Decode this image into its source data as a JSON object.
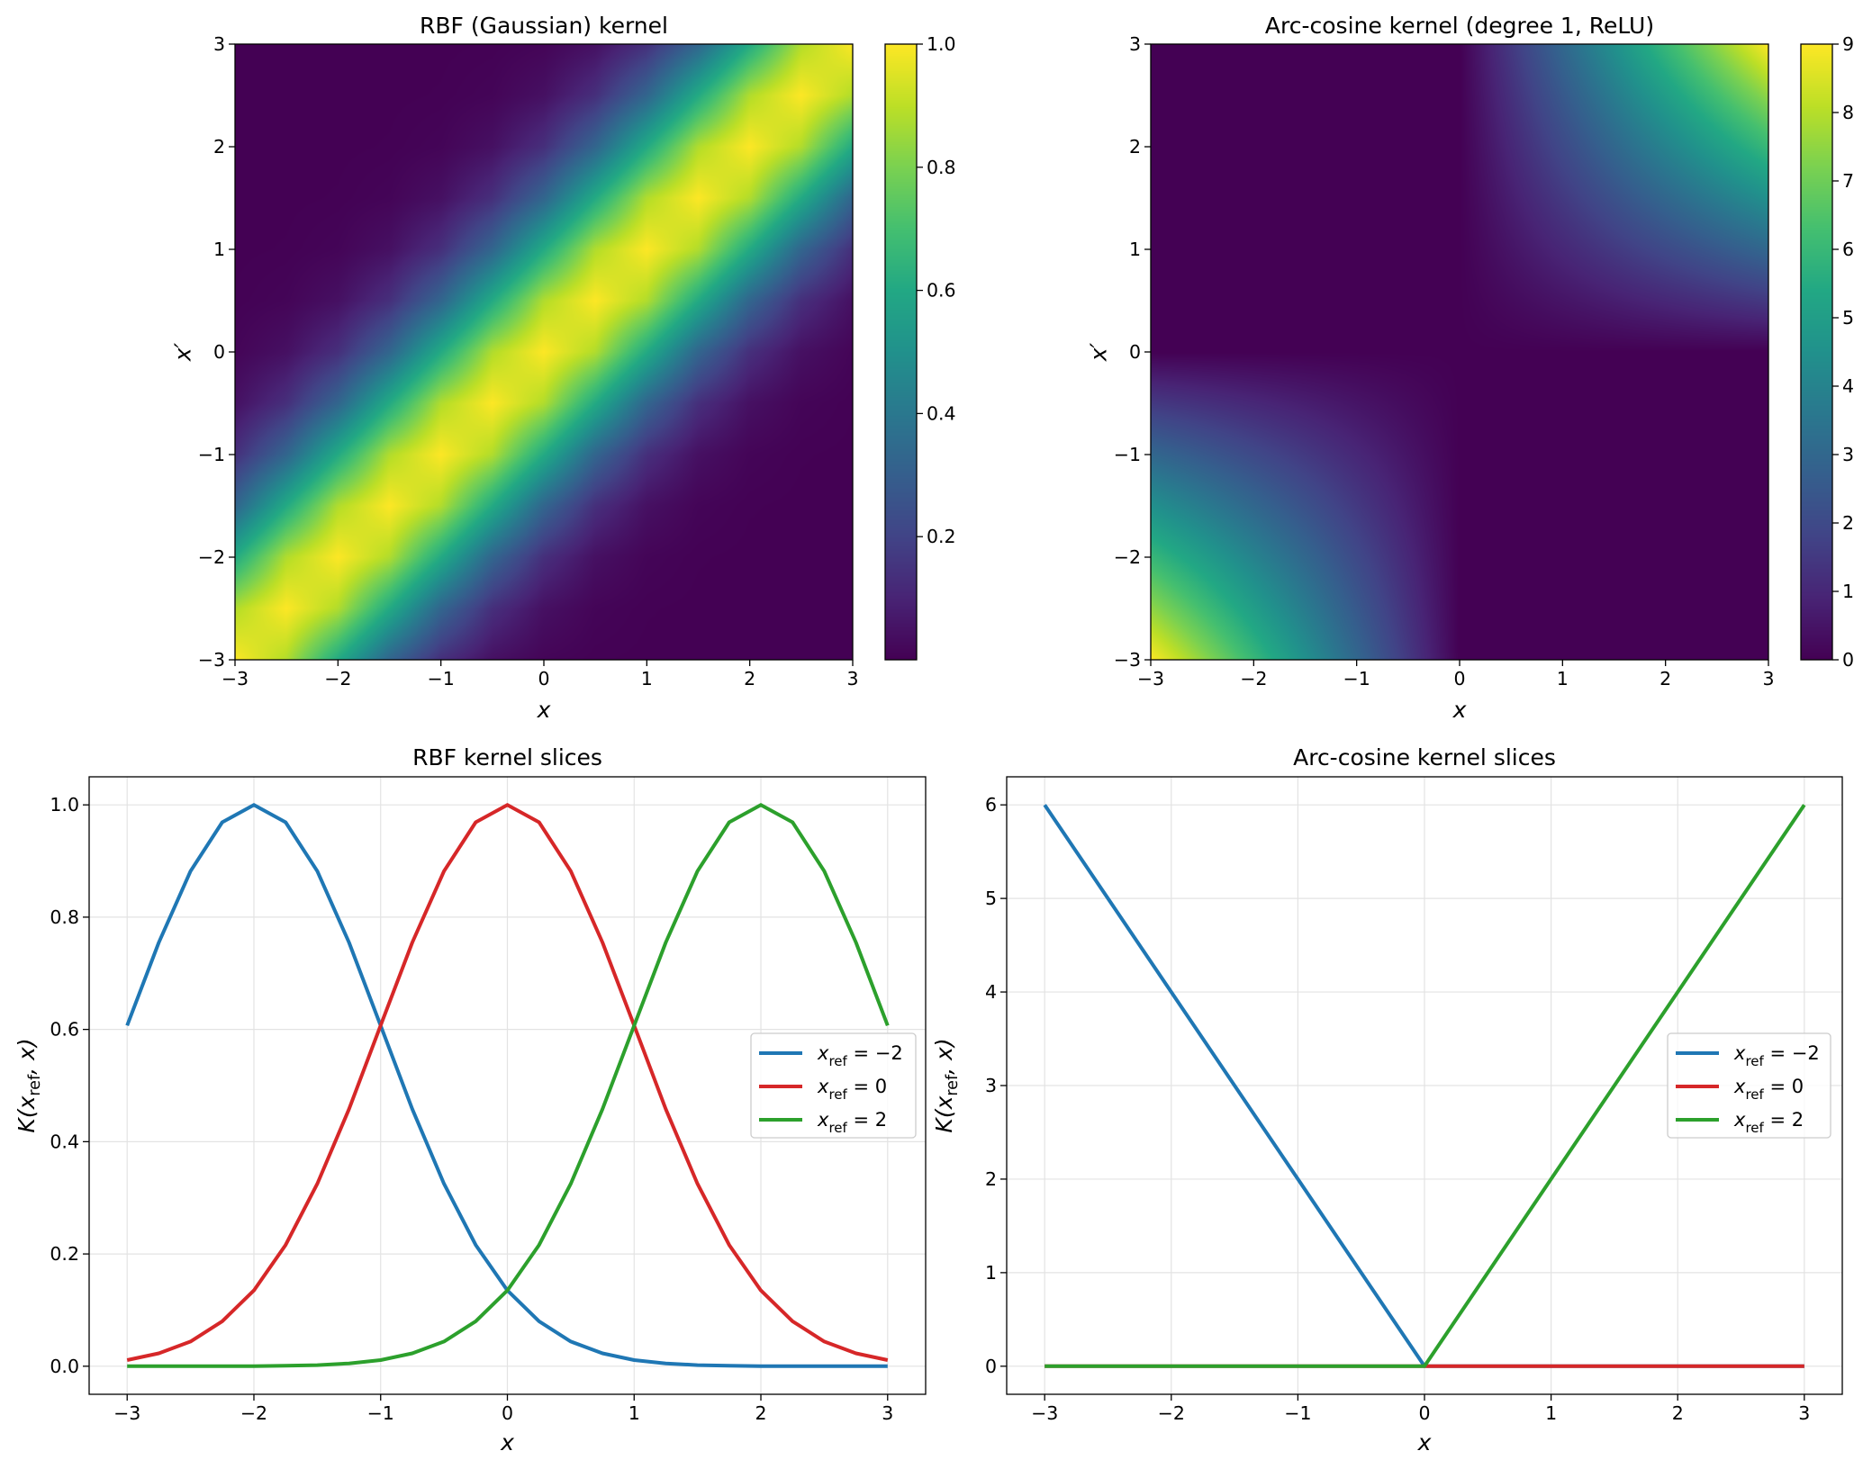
{
  "chart_data": [
    {
      "type": "heatmap",
      "title": "RBF (Gaussian) kernel",
      "xlabel": "x",
      "ylabel": "x′",
      "colormap": "viridis",
      "x": [
        -3,
        -2.5,
        -2,
        -1.5,
        -1,
        -0.5,
        0,
        0.5,
        1,
        1.5,
        2,
        2.5,
        3
      ],
      "y": [
        -3,
        -2.5,
        -2,
        -1.5,
        -1,
        -0.5,
        0,
        0.5,
        1,
        1.5,
        2,
        2.5,
        3
      ],
      "z": [
        [
          1,
          0.882,
          0.607,
          0.325,
          0.135,
          0.044,
          0.011,
          0.002,
          0,
          0,
          0,
          0,
          0
        ],
        [
          0.882,
          1,
          0.882,
          0.607,
          0.325,
          0.135,
          0.044,
          0.011,
          0.002,
          0,
          0,
          0,
          0
        ],
        [
          0.607,
          0.882,
          1,
          0.882,
          0.607,
          0.325,
          0.135,
          0.044,
          0.011,
          0.002,
          0,
          0,
          0
        ],
        [
          0.325,
          0.607,
          0.882,
          1,
          0.882,
          0.607,
          0.325,
          0.135,
          0.044,
          0.011,
          0.002,
          0,
          0
        ],
        [
          0.135,
          0.325,
          0.607,
          0.882,
          1,
          0.882,
          0.607,
          0.325,
          0.135,
          0.044,
          0.011,
          0.002,
          0
        ],
        [
          0.044,
          0.135,
          0.325,
          0.607,
          0.882,
          1,
          0.882,
          0.607,
          0.325,
          0.135,
          0.044,
          0.011,
          0.002
        ],
        [
          0.011,
          0.044,
          0.135,
          0.325,
          0.607,
          0.882,
          1,
          0.882,
          0.607,
          0.325,
          0.135,
          0.044,
          0.011
        ],
        [
          0.002,
          0.011,
          0.044,
          0.135,
          0.325,
          0.607,
          0.882,
          1,
          0.882,
          0.607,
          0.325,
          0.135,
          0.044
        ],
        [
          0,
          0.002,
          0.011,
          0.044,
          0.135,
          0.325,
          0.607,
          0.882,
          1,
          0.882,
          0.607,
          0.325,
          0.135
        ],
        [
          0,
          0,
          0.002,
          0.011,
          0.044,
          0.135,
          0.325,
          0.607,
          0.882,
          1,
          0.882,
          0.607,
          0.325
        ],
        [
          0,
          0,
          0,
          0.002,
          0.011,
          0.044,
          0.135,
          0.325,
          0.607,
          0.882,
          1,
          0.882,
          0.607
        ],
        [
          0,
          0,
          0,
          0,
          0.002,
          0.011,
          0.044,
          0.135,
          0.325,
          0.607,
          0.882,
          1,
          0.882
        ],
        [
          0,
          0,
          0,
          0,
          0,
          0.002,
          0.011,
          0.044,
          0.135,
          0.325,
          0.607,
          0.882,
          1
        ]
      ],
      "xlim": [
        -3,
        3
      ],
      "ylim": [
        -3,
        3
      ],
      "xticks": [
        -3,
        -2,
        -1,
        0,
        1,
        2,
        3
      ],
      "xticklabels": [
        "−3",
        "−2",
        "−1",
        "0",
        "1",
        "2",
        "3"
      ],
      "yticks": [
        -3,
        -2,
        -1,
        0,
        1,
        2,
        3
      ],
      "yticklabels": [
        "−3",
        "−2",
        "−1",
        "0",
        "1",
        "2",
        "3"
      ],
      "colorbar": {
        "range": [
          0,
          1
        ],
        "ticks": [
          0.2,
          0.4,
          0.6,
          0.8,
          1.0
        ],
        "ticklabels": [
          "0.2",
          "0.4",
          "0.6",
          "0.8",
          "1.0"
        ]
      }
    },
    {
      "type": "heatmap",
      "title": "Arc-cosine kernel (degree 1, ReLU)",
      "xlabel": "x",
      "ylabel": "x′",
      "colormap": "viridis",
      "x": [
        -3,
        -2.5,
        -2,
        -1.5,
        -1,
        -0.5,
        0,
        0.5,
        1,
        1.5,
        2,
        2.5,
        3
      ],
      "y": [
        -3,
        -2.5,
        -2,
        -1.5,
        -1,
        -0.5,
        0,
        0.5,
        1,
        1.5,
        2,
        2.5,
        3
      ],
      "z": [
        [
          9,
          7.5,
          6,
          4.5,
          3,
          1.5,
          0,
          0,
          0,
          0,
          0,
          0,
          0
        ],
        [
          7.5,
          6.25,
          5,
          3.75,
          2.5,
          1.25,
          0,
          0,
          0,
          0,
          0,
          0,
          0
        ],
        [
          6,
          5,
          4,
          3,
          2,
          1,
          0,
          0,
          0,
          0,
          0,
          0,
          0
        ],
        [
          4.5,
          3.75,
          3,
          2.25,
          1.5,
          0.75,
          0,
          0,
          0,
          0,
          0,
          0,
          0
        ],
        [
          3,
          2.5,
          2,
          1.5,
          1,
          0.5,
          0,
          0,
          0,
          0,
          0,
          0,
          0
        ],
        [
          1.5,
          1.25,
          1,
          0.75,
          0.5,
          0.25,
          0,
          0,
          0,
          0,
          0,
          0,
          0
        ],
        [
          0,
          0,
          0,
          0,
          0,
          0,
          0,
          0,
          0,
          0,
          0,
          0,
          0
        ],
        [
          0,
          0,
          0,
          0,
          0,
          0,
          0,
          0.25,
          0.5,
          0.75,
          1,
          1.25,
          1.5
        ],
        [
          0,
          0,
          0,
          0,
          0,
          0,
          0,
          0.5,
          1,
          1.5,
          2,
          2.5,
          3
        ],
        [
          0,
          0,
          0,
          0,
          0,
          0,
          0,
          0.75,
          1.5,
          2.25,
          3,
          3.75,
          4.5
        ],
        [
          0,
          0,
          0,
          0,
          0,
          0,
          0,
          1,
          2,
          3,
          4,
          5,
          6
        ],
        [
          0,
          0,
          0,
          0,
          0,
          0,
          0,
          1.25,
          2.5,
          3.75,
          5,
          6.25,
          7.5
        ],
        [
          0,
          0,
          0,
          0,
          0,
          0,
          0,
          1.5,
          3,
          4.5,
          6,
          7.5,
          9
        ]
      ],
      "xlim": [
        -3,
        3
      ],
      "ylim": [
        -3,
        3
      ],
      "xticks": [
        -3,
        -2,
        -1,
        0,
        1,
        2,
        3
      ],
      "xticklabels": [
        "−3",
        "−2",
        "−1",
        "0",
        "1",
        "2",
        "3"
      ],
      "yticks": [
        -3,
        -2,
        -1,
        0,
        1,
        2,
        3
      ],
      "yticklabels": [
        "−3",
        "−2",
        "−1",
        "0",
        "1",
        "2",
        "3"
      ],
      "colorbar": {
        "range": [
          0,
          9
        ],
        "ticks": [
          0,
          1,
          2,
          3,
          4,
          5,
          6,
          7,
          8,
          9
        ],
        "ticklabels": [
          "0",
          "1",
          "2",
          "3",
          "4",
          "5",
          "6",
          "7",
          "8",
          "9"
        ]
      }
    },
    {
      "type": "line",
      "title": "RBF kernel slices",
      "xlabel": "x",
      "ylabel": {
        "pre": "K(",
        "sym": "x",
        "sub": "ref",
        "post": ", x)"
      },
      "x": [
        -3,
        -2.75,
        -2.5,
        -2.25,
        -2,
        -1.75,
        -1.5,
        -1.25,
        -1,
        -0.75,
        -0.5,
        -0.25,
        0,
        0.25,
        0.5,
        0.75,
        1,
        1.25,
        1.5,
        1.75,
        2,
        2.25,
        2.5,
        2.75,
        3
      ],
      "series": [
        {
          "name": {
            "sym": "x",
            "sub": "ref",
            "rest": " = −2"
          },
          "color": "#1f77b4",
          "values": [
            0.607,
            0.755,
            0.882,
            0.969,
            1,
            0.969,
            0.882,
            0.755,
            0.607,
            0.458,
            0.325,
            0.216,
            0.135,
            0.08,
            0.044,
            0.023,
            0.011,
            0.005,
            0.002,
            0.001,
            0,
            0,
            0,
            0,
            0
          ]
        },
        {
          "name": {
            "sym": "x",
            "sub": "ref",
            "rest": " = 0"
          },
          "color": "#d62728",
          "values": [
            0.011,
            0.023,
            0.044,
            0.08,
            0.135,
            0.216,
            0.325,
            0.458,
            0.607,
            0.755,
            0.882,
            0.969,
            1,
            0.969,
            0.882,
            0.755,
            0.607,
            0.458,
            0.325,
            0.216,
            0.135,
            0.08,
            0.044,
            0.023,
            0.011
          ]
        },
        {
          "name": {
            "sym": "x",
            "sub": "ref",
            "rest": " = 2"
          },
          "color": "#2ca02c",
          "values": [
            0,
            0,
            0,
            0,
            0,
            0.001,
            0.002,
            0.005,
            0.011,
            0.023,
            0.044,
            0.08,
            0.135,
            0.216,
            0.325,
            0.458,
            0.607,
            0.755,
            0.882,
            0.969,
            1,
            0.969,
            0.882,
            0.755,
            0.607
          ]
        }
      ],
      "xlim": [
        -3.3,
        3.3
      ],
      "ylim": [
        -0.05,
        1.05
      ],
      "xticks": [
        -3,
        -2,
        -1,
        0,
        1,
        2,
        3
      ],
      "xticklabels": [
        "−3",
        "−2",
        "−1",
        "0",
        "1",
        "2",
        "3"
      ],
      "yticks": [
        0,
        0.2,
        0.4,
        0.6,
        0.8,
        1.0
      ],
      "yticklabels": [
        "0.0",
        "0.2",
        "0.4",
        "0.6",
        "0.8",
        "1.0"
      ],
      "grid": true,
      "legend": "center-right"
    },
    {
      "type": "line",
      "title": "Arc-cosine kernel slices",
      "xlabel": "x",
      "ylabel": {
        "pre": "K(",
        "sym": "x",
        "sub": "ref",
        "post": ", x)"
      },
      "x": [
        -3,
        -2,
        -1,
        0,
        1,
        2,
        3
      ],
      "series": [
        {
          "name": {
            "sym": "x",
            "sub": "ref",
            "rest": " = −2"
          },
          "color": "#1f77b4",
          "values": [
            6,
            4,
            2,
            0,
            0,
            0,
            0
          ]
        },
        {
          "name": {
            "sym": "x",
            "sub": "ref",
            "rest": " = 0"
          },
          "color": "#d62728",
          "values": [
            0,
            0,
            0,
            0,
            0,
            0,
            0
          ]
        },
        {
          "name": {
            "sym": "x",
            "sub": "ref",
            "rest": " = 2"
          },
          "color": "#2ca02c",
          "values": [
            0,
            0,
            0,
            0,
            2,
            4,
            6
          ]
        }
      ],
      "xlim": [
        -3.3,
        3.3
      ],
      "ylim": [
        -0.3,
        6.3
      ],
      "xticks": [
        -3,
        -2,
        -1,
        0,
        1,
        2,
        3
      ],
      "xticklabels": [
        "−3",
        "−2",
        "−1",
        "0",
        "1",
        "2",
        "3"
      ],
      "yticks": [
        0,
        1,
        2,
        3,
        4,
        5,
        6
      ],
      "yticklabels": [
        "0",
        "1",
        "2",
        "3",
        "4",
        "5",
        "6"
      ],
      "grid": true,
      "legend": "center-right"
    }
  ]
}
